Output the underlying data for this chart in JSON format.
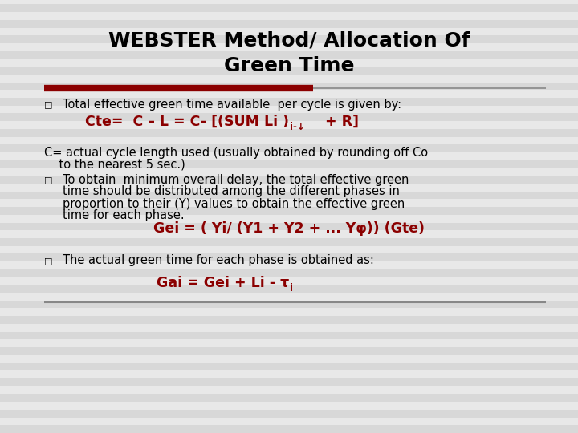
{
  "title_line1": "WEBSTER Method/ Allocation Of",
  "title_line2": "Green Time",
  "bg_color": "#e8e8e8",
  "stripe_color": "#d8d8d8",
  "title_color": "#000000",
  "red_color": "#8B0000",
  "text_color": "#000000",
  "separator_red": "#8B0000",
  "separator_gray": "#888888",
  "bullet": "□",
  "line1_bullet": "Total effective green time available  per cycle is given by:",
  "c_def_1": "C= actual cycle length used (usually obtained by rounding off Co",
  "c_def_2": "    to the nearest 5 sec.)",
  "bullet2_lines": [
    "To obtain  minimum overall delay, the total effective green",
    "time should be distributed among the different phases in",
    "proportion to their (Y) values to obtain the effective green",
    "time for each phase."
  ],
  "formula2": "Gei = ( Yi/ (Y1 + Y2 + ... Yφ)) (Gte)",
  "line3_bullet": "The actual green time for each phase is obtained as:",
  "title_fontsize": 18,
  "body_fontsize": 10.5,
  "formula_fontsize": 12.5
}
